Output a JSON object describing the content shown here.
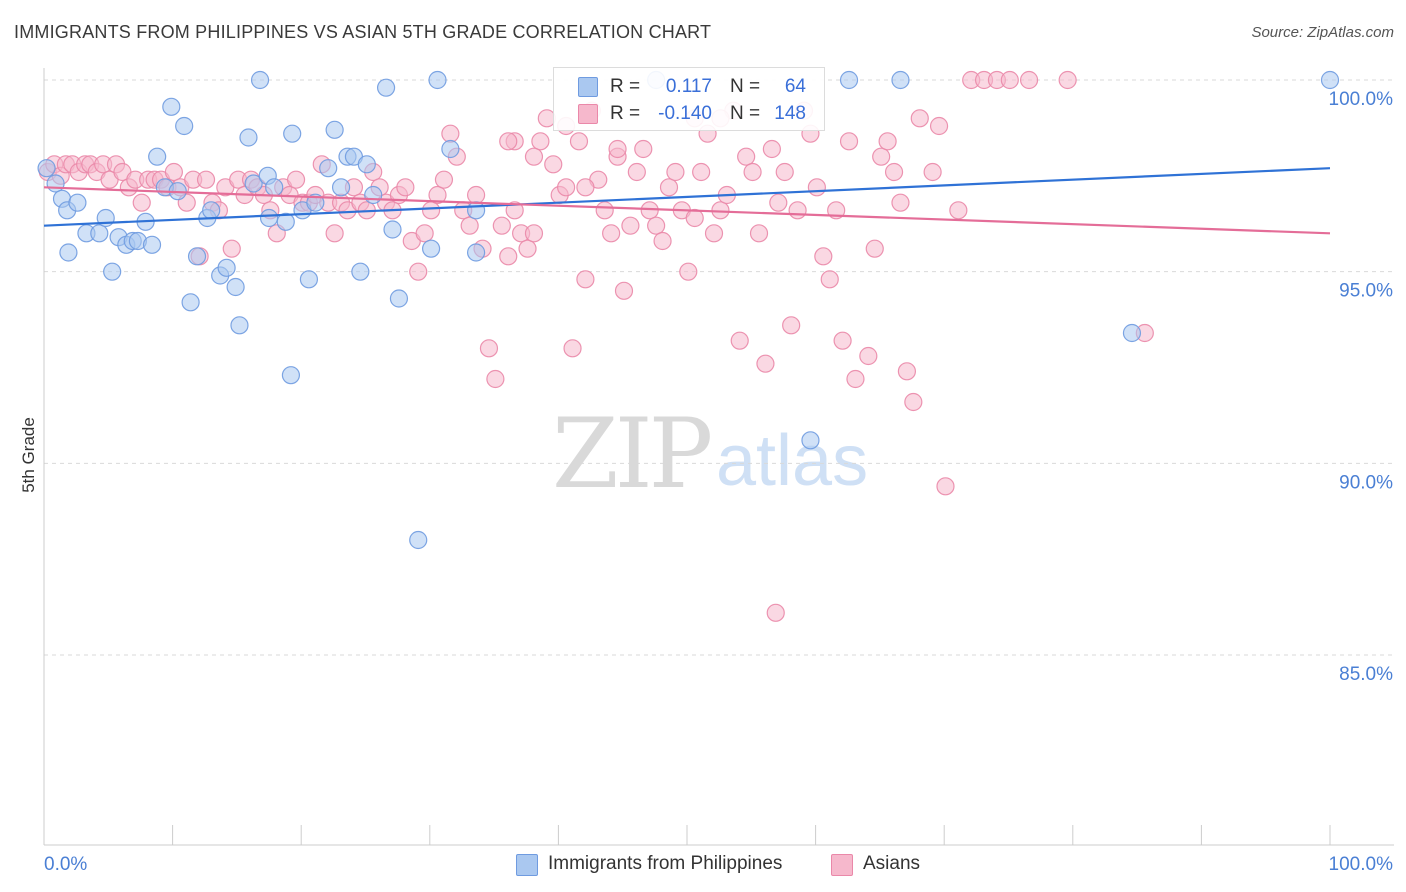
{
  "title": "IMMIGRANTS FROM PHILIPPINES VS ASIAN 5TH GRADE CORRELATION CHART",
  "source": "Source: ZipAtlas.com",
  "watermark": {
    "zip": "ZIP",
    "atlas": "atlas"
  },
  "colors": {
    "blue_fill": "#aac8f0",
    "blue_stroke": "#6f9be0",
    "blue_line": "#2f72d6",
    "pink_fill": "#f6b8cc",
    "pink_stroke": "#ea88a9",
    "pink_line": "#e46d98",
    "grid": "#d9d9d9",
    "tick_text": "#4a7fd4"
  },
  "legend_stats": {
    "rows": [
      {
        "r_label": "R =",
        "r_value": "0.117",
        "n_label": "N =",
        "n_value": "64",
        "series": "blue"
      },
      {
        "r_label": "R =",
        "r_value": "-0.140",
        "n_label": "N =",
        "n_value": "148",
        "series": "pink"
      }
    ]
  },
  "legend": {
    "items": [
      {
        "label": "Immigrants from Philippines",
        "series": "blue"
      },
      {
        "label": "Asians",
        "series": "pink"
      }
    ]
  },
  "chart_data": {
    "type": "scatter",
    "title": "IMMIGRANTS FROM PHILIPPINES VS ASIAN 5TH GRADE CORRELATION CHART",
    "xlabel": "",
    "ylabel": "5th Grade",
    "xlim": [
      0,
      100
    ],
    "ylim": [
      80.5,
      100.8
    ],
    "x_tick_labels": [
      "0.0%",
      "100.0%"
    ],
    "y_ticks": [
      100,
      95,
      90,
      85
    ],
    "y_tick_labels": [
      "100.0%",
      "95.0%",
      "90.0%",
      "85.0%"
    ],
    "grid": "horizontal dashed",
    "legend_position": "bottom",
    "series": [
      {
        "name": "Immigrants from Philippines",
        "color": "blue",
        "trend": {
          "x": [
            0,
            100
          ],
          "y": [
            96.2,
            97.7
          ]
        },
        "points": [
          [
            0.2,
            97.7
          ],
          [
            0.9,
            97.3
          ],
          [
            1.4,
            96.9
          ],
          [
            1.8,
            96.6
          ],
          [
            2.6,
            96.8
          ],
          [
            1.9,
            95.5
          ],
          [
            3.3,
            96.0
          ],
          [
            4.3,
            96.0
          ],
          [
            4.8,
            96.4
          ],
          [
            5.3,
            95.0
          ],
          [
            5.8,
            95.9
          ],
          [
            6.4,
            95.7
          ],
          [
            6.9,
            95.8
          ],
          [
            7.3,
            95.8
          ],
          [
            7.9,
            96.3
          ],
          [
            8.4,
            95.7
          ],
          [
            8.8,
            98.0
          ],
          [
            9.4,
            97.2
          ],
          [
            9.9,
            99.3
          ],
          [
            10.4,
            97.1
          ],
          [
            10.9,
            98.8
          ],
          [
            11.4,
            94.2
          ],
          [
            11.9,
            95.4
          ],
          [
            12.7,
            96.4
          ],
          [
            13.0,
            96.6
          ],
          [
            13.7,
            94.9
          ],
          [
            14.2,
            95.1
          ],
          [
            14.9,
            94.6
          ],
          [
            15.2,
            93.6
          ],
          [
            15.9,
            98.5
          ],
          [
            16.3,
            97.3
          ],
          [
            16.8,
            100.0
          ],
          [
            17.4,
            97.5
          ],
          [
            17.5,
            96.4
          ],
          [
            17.9,
            97.2
          ],
          [
            18.8,
            96.3
          ],
          [
            19.3,
            98.6
          ],
          [
            19.2,
            92.3
          ],
          [
            20.1,
            96.6
          ],
          [
            20.6,
            94.8
          ],
          [
            21.1,
            96.8
          ],
          [
            22.1,
            97.7
          ],
          [
            22.6,
            98.7
          ],
          [
            23.1,
            97.2
          ],
          [
            23.6,
            98.0
          ],
          [
            24.1,
            98.0
          ],
          [
            24.6,
            95.0
          ],
          [
            25.1,
            97.8
          ],
          [
            25.6,
            97.0
          ],
          [
            26.6,
            99.8
          ],
          [
            27.1,
            96.1
          ],
          [
            27.6,
            94.3
          ],
          [
            29.1,
            88.0
          ],
          [
            30.1,
            95.6
          ],
          [
            30.6,
            100.0
          ],
          [
            31.6,
            98.2
          ],
          [
            33.6,
            96.6
          ],
          [
            33.6,
            95.5
          ],
          [
            47.6,
            100.0
          ],
          [
            59.6,
            90.6
          ],
          [
            62.6,
            100.0
          ],
          [
            66.6,
            100.0
          ],
          [
            84.6,
            93.4
          ],
          [
            100.0,
            100.0
          ]
        ]
      },
      {
        "name": "Asians",
        "color": "pink",
        "trend": {
          "x": [
            0,
            100
          ],
          "y": [
            97.2,
            96.0
          ]
        },
        "points": [
          [
            0.3,
            97.6
          ],
          [
            0.8,
            97.8
          ],
          [
            1.3,
            97.5
          ],
          [
            1.7,
            97.8
          ],
          [
            2.2,
            97.8
          ],
          [
            2.7,
            97.6
          ],
          [
            3.2,
            97.8
          ],
          [
            3.6,
            97.8
          ],
          [
            4.1,
            97.6
          ],
          [
            4.6,
            97.8
          ],
          [
            5.1,
            97.4
          ],
          [
            5.6,
            97.8
          ],
          [
            6.1,
            97.6
          ],
          [
            6.6,
            97.2
          ],
          [
            7.1,
            97.4
          ],
          [
            7.6,
            96.8
          ],
          [
            8.1,
            97.4
          ],
          [
            8.6,
            97.4
          ],
          [
            9.1,
            97.4
          ],
          [
            9.6,
            97.2
          ],
          [
            10.1,
            97.6
          ],
          [
            10.6,
            97.2
          ],
          [
            11.1,
            96.8
          ],
          [
            11.6,
            97.4
          ],
          [
            12.1,
            95.4
          ],
          [
            12.6,
            97.4
          ],
          [
            13.1,
            96.8
          ],
          [
            13.6,
            96.6
          ],
          [
            14.1,
            97.2
          ],
          [
            14.6,
            95.6
          ],
          [
            15.1,
            97.4
          ],
          [
            15.6,
            97.0
          ],
          [
            16.1,
            97.4
          ],
          [
            16.6,
            97.2
          ],
          [
            17.1,
            97.0
          ],
          [
            17.6,
            96.6
          ],
          [
            18.1,
            96.0
          ],
          [
            18.6,
            97.2
          ],
          [
            19.1,
            97.0
          ],
          [
            19.6,
            97.4
          ],
          [
            20.1,
            96.8
          ],
          [
            20.6,
            96.8
          ],
          [
            21.1,
            97.0
          ],
          [
            21.6,
            97.8
          ],
          [
            22.1,
            96.8
          ],
          [
            22.6,
            96.0
          ],
          [
            23.1,
            96.8
          ],
          [
            23.6,
            96.6
          ],
          [
            24.1,
            97.2
          ],
          [
            24.6,
            96.8
          ],
          [
            25.1,
            96.6
          ],
          [
            25.6,
            97.6
          ],
          [
            26.1,
            97.2
          ],
          [
            26.6,
            96.8
          ],
          [
            27.1,
            96.6
          ],
          [
            27.6,
            97.0
          ],
          [
            28.1,
            97.2
          ],
          [
            28.6,
            95.8
          ],
          [
            29.1,
            95.0
          ],
          [
            29.6,
            96.0
          ],
          [
            30.1,
            96.6
          ],
          [
            30.6,
            97.0
          ],
          [
            31.1,
            97.4
          ],
          [
            31.6,
            98.6
          ],
          [
            32.1,
            98.0
          ],
          [
            32.6,
            96.6
          ],
          [
            33.1,
            96.2
          ],
          [
            33.6,
            97.0
          ],
          [
            34.1,
            95.6
          ],
          [
            34.6,
            93.0
          ],
          [
            35.1,
            92.2
          ],
          [
            35.6,
            96.2
          ],
          [
            36.1,
            95.4
          ],
          [
            36.6,
            96.6
          ],
          [
            37.1,
            96.0
          ],
          [
            37.6,
            95.6
          ],
          [
            38.1,
            96.0
          ],
          [
            38.6,
            98.4
          ],
          [
            39.1,
            99.0
          ],
          [
            39.6,
            97.8
          ],
          [
            40.1,
            97.0
          ],
          [
            40.6,
            97.2
          ],
          [
            41.1,
            93.0
          ],
          [
            41.6,
            98.4
          ],
          [
            42.1,
            94.8
          ],
          [
            42.6,
            99.2
          ],
          [
            43.1,
            97.4
          ],
          [
            43.6,
            96.6
          ],
          [
            44.1,
            96.0
          ],
          [
            44.6,
            98.0
          ],
          [
            45.1,
            94.5
          ],
          [
            45.6,
            96.2
          ],
          [
            46.1,
            97.6
          ],
          [
            46.6,
            98.2
          ],
          [
            47.1,
            96.6
          ],
          [
            47.6,
            96.2
          ],
          [
            48.1,
            95.8
          ],
          [
            48.6,
            97.2
          ],
          [
            49.1,
            97.6
          ],
          [
            49.6,
            96.6
          ],
          [
            50.1,
            95.0
          ],
          [
            50.6,
            96.4
          ],
          [
            51.1,
            97.6
          ],
          [
            51.6,
            98.6
          ],
          [
            52.1,
            96.0
          ],
          [
            52.6,
            96.6
          ],
          [
            53.1,
            97.0
          ],
          [
            53.6,
            99.2
          ],
          [
            54.1,
            93.2
          ],
          [
            54.6,
            98.0
          ],
          [
            55.1,
            97.6
          ],
          [
            55.6,
            96.0
          ],
          [
            56.1,
            92.6
          ],
          [
            56.6,
            98.2
          ],
          [
            57.1,
            96.8
          ],
          [
            57.6,
            97.6
          ],
          [
            58.1,
            93.6
          ],
          [
            58.6,
            96.6
          ],
          [
            59.1,
            99.2
          ],
          [
            59.6,
            98.6
          ],
          [
            60.1,
            97.2
          ],
          [
            60.6,
            95.4
          ],
          [
            61.1,
            94.8
          ],
          [
            61.6,
            96.6
          ],
          [
            62.1,
            93.2
          ],
          [
            62.6,
            98.4
          ],
          [
            63.1,
            92.2
          ],
          [
            64.1,
            92.8
          ],
          [
            64.6,
            95.6
          ],
          [
            65.1,
            98.0
          ],
          [
            65.6,
            98.4
          ],
          [
            66.1,
            97.6
          ],
          [
            66.6,
            96.8
          ],
          [
            67.1,
            92.4
          ],
          [
            67.6,
            91.6
          ],
          [
            68.1,
            99.0
          ],
          [
            69.1,
            97.6
          ],
          [
            69.6,
            98.8
          ],
          [
            70.1,
            89.4
          ],
          [
            71.1,
            96.6
          ],
          [
            72.1,
            100.0
          ],
          [
            73.1,
            100.0
          ],
          [
            74.1,
            100.0
          ],
          [
            75.1,
            100.0
          ],
          [
            76.6,
            100.0
          ],
          [
            79.6,
            100.0
          ],
          [
            85.6,
            93.4
          ],
          [
            36.6,
            98.4
          ],
          [
            56.9,
            86.1
          ],
          [
            38.1,
            98.0
          ],
          [
            42.1,
            97.2
          ],
          [
            52.6,
            99.0
          ],
          [
            50.6,
            99.0
          ],
          [
            36.1,
            98.4
          ],
          [
            40.6,
            98.8
          ],
          [
            44.6,
            98.2
          ]
        ]
      }
    ]
  }
}
